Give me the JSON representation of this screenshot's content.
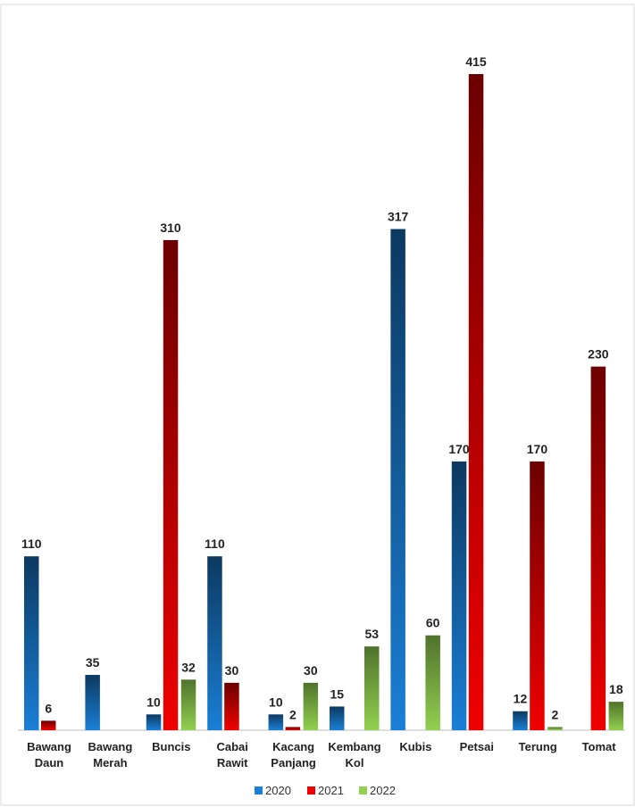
{
  "chart_data": {
    "type": "bar",
    "categories": [
      "Bawang Daun",
      "Bawang Merah",
      "Buncis",
      "Cabai Rawit",
      "Kacang Panjang",
      "Kembang Kol",
      "Kubis",
      "Petsai",
      "Terung",
      "Tomat"
    ],
    "series": [
      {
        "name": "2020",
        "color": "#1a7fd6",
        "values": [
          110,
          35,
          10,
          110,
          10,
          15,
          317,
          170,
          12,
          null
        ]
      },
      {
        "name": "2021",
        "color": "#f00000",
        "values": [
          6,
          null,
          310,
          30,
          2,
          null,
          null,
          415,
          170,
          230
        ]
      },
      {
        "name": "2022",
        "color": "#92d050",
        "values": [
          null,
          null,
          32,
          null,
          30,
          53,
          60,
          null,
          2,
          18
        ]
      }
    ],
    "legend": "bottom"
  }
}
